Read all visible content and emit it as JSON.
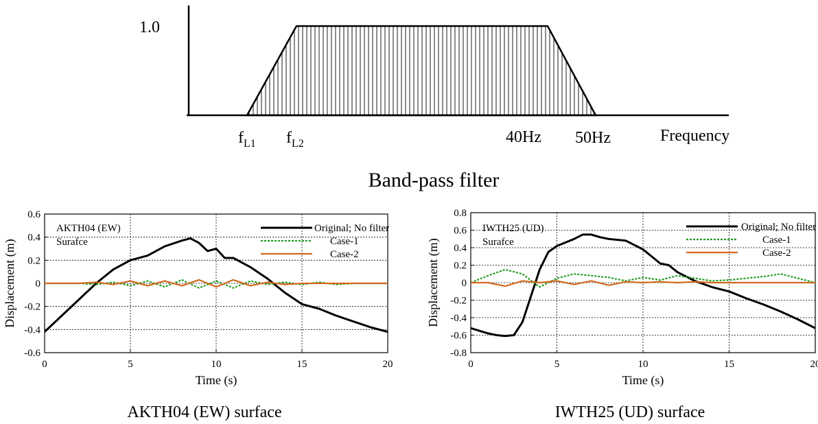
{
  "filter_diagram": {
    "caption": "Band-pass filter",
    "y_label": "1.0",
    "x_axis_label": "Frequency",
    "ticks": [
      {
        "main": "f",
        "sub": "L1"
      },
      {
        "main": "f",
        "sub": "L2"
      },
      {
        "main": "40Hz",
        "sub": ""
      },
      {
        "main": "50Hz",
        "sub": ""
      }
    ]
  },
  "chart_data": [
    {
      "type": "line",
      "caption": "AKTH04 (EW) surface",
      "annotation": [
        "AKTH04 (EW)",
        "Surafce"
      ],
      "xlabel": "Time (s)",
      "ylabel": "Displacement (m)",
      "xlim": [
        0,
        20
      ],
      "ylim": [
        -0.6,
        0.6
      ],
      "xticks": [
        "0",
        "5",
        "10",
        "15",
        "20"
      ],
      "yticks": [
        "-0.6",
        "-0.4",
        "-0.2",
        "0",
        "0.2",
        "0.4",
        "0.6"
      ],
      "grid": true,
      "legend_position": "top-right",
      "series": [
        {
          "name": "Original; No filter",
          "color": "#000000",
          "style": "solid",
          "x": [
            0,
            1,
            2,
            3,
            4,
            5,
            6,
            7,
            8,
            8.5,
            9,
            9.5,
            10,
            10.5,
            11,
            12,
            13,
            14,
            15,
            16,
            17,
            18,
            19,
            20
          ],
          "y": [
            -0.42,
            -0.28,
            -0.14,
            0.0,
            0.12,
            0.2,
            0.24,
            0.32,
            0.37,
            0.39,
            0.35,
            0.28,
            0.3,
            0.22,
            0.22,
            0.14,
            0.04,
            -0.08,
            -0.18,
            -0.22,
            -0.28,
            -0.33,
            -0.38,
            -0.42
          ]
        },
        {
          "name": "Case-1",
          "color": "#1f9a1f",
          "style": "dotted",
          "x": [
            0,
            2,
            3,
            4,
            5,
            6,
            7,
            8,
            9,
            10,
            11,
            12,
            13,
            14,
            15,
            16,
            17,
            18,
            19,
            20
          ],
          "y": [
            0.0,
            0.0,
            -0.01,
            0.01,
            -0.02,
            0.02,
            -0.03,
            0.03,
            -0.04,
            0.02,
            -0.04,
            0.02,
            -0.01,
            0.01,
            -0.01,
            0.01,
            -0.01,
            0.0,
            0.0,
            0.0
          ]
        },
        {
          "name": "Case-2",
          "color": "#d2691e",
          "style": "solid",
          "x": [
            0,
            2,
            3,
            4,
            5,
            6,
            7,
            8,
            9,
            10,
            11,
            12,
            13,
            14,
            15,
            16,
            17,
            18,
            19,
            20
          ],
          "y": [
            0.0,
            0.0,
            0.01,
            -0.01,
            0.02,
            -0.02,
            0.02,
            -0.02,
            0.03,
            -0.03,
            0.03,
            -0.02,
            0.01,
            -0.01,
            0.0,
            0.0,
            0.0,
            0.0,
            0.0,
            0.0
          ]
        }
      ]
    },
    {
      "type": "line",
      "caption": "IWTH25 (UD) surface",
      "annotation": [
        "IWTH25 (UD)",
        "Surafce"
      ],
      "xlabel": "Time (s)",
      "ylabel": "Displacement (m)",
      "xlim": [
        0,
        20
      ],
      "ylim": [
        -0.8,
        0.8
      ],
      "xticks": [
        "0",
        "5",
        "10",
        "15",
        "20"
      ],
      "yticks": [
        "-0.8",
        "-0.6",
        "-0.4",
        "-0.2",
        "0",
        "0.2",
        "0.4",
        "0.6",
        "0.8"
      ],
      "grid": true,
      "legend_position": "top-right",
      "series": [
        {
          "name": "Original; No filter",
          "color": "#000000",
          "style": "solid",
          "x": [
            0,
            1,
            1.5,
            2,
            2.5,
            3,
            3.5,
            4,
            4.5,
            5,
            6,
            6.5,
            7,
            7.5,
            8,
            9,
            10,
            11,
            11.5,
            12,
            13,
            14,
            15,
            16,
            17,
            18,
            19,
            20
          ],
          "y": [
            -0.52,
            -0.58,
            -0.6,
            -0.61,
            -0.6,
            -0.45,
            -0.15,
            0.15,
            0.35,
            0.42,
            0.5,
            0.55,
            0.55,
            0.52,
            0.5,
            0.48,
            0.38,
            0.22,
            0.2,
            0.12,
            0.02,
            -0.05,
            -0.1,
            -0.18,
            -0.25,
            -0.33,
            -0.42,
            -0.52
          ]
        },
        {
          "name": "Case-1",
          "color": "#1f9a1f",
          "style": "dotted",
          "x": [
            0,
            1,
            2,
            3,
            4,
            5,
            6,
            7,
            8,
            9,
            10,
            11,
            12,
            13,
            14,
            15,
            16,
            17,
            18,
            19,
            20
          ],
          "y": [
            0.0,
            0.08,
            0.15,
            0.1,
            -0.05,
            0.05,
            0.1,
            0.08,
            0.06,
            0.02,
            0.06,
            0.03,
            0.08,
            0.05,
            0.02,
            0.03,
            0.05,
            0.07,
            0.1,
            0.05,
            0.0
          ]
        },
        {
          "name": "Case-2",
          "color": "#d2691e",
          "style": "solid",
          "x": [
            0,
            1,
            2,
            3,
            4,
            5,
            6,
            7,
            8,
            9,
            10,
            11,
            12,
            13,
            14,
            15,
            16,
            17,
            18,
            19,
            20
          ],
          "y": [
            0.0,
            0.0,
            -0.04,
            0.02,
            0.0,
            0.02,
            -0.02,
            0.02,
            -0.03,
            0.01,
            0.0,
            0.01,
            0.0,
            0.01,
            0.0,
            0.0,
            0.0,
            0.0,
            0.0,
            0.0,
            0.0
          ]
        }
      ]
    }
  ]
}
